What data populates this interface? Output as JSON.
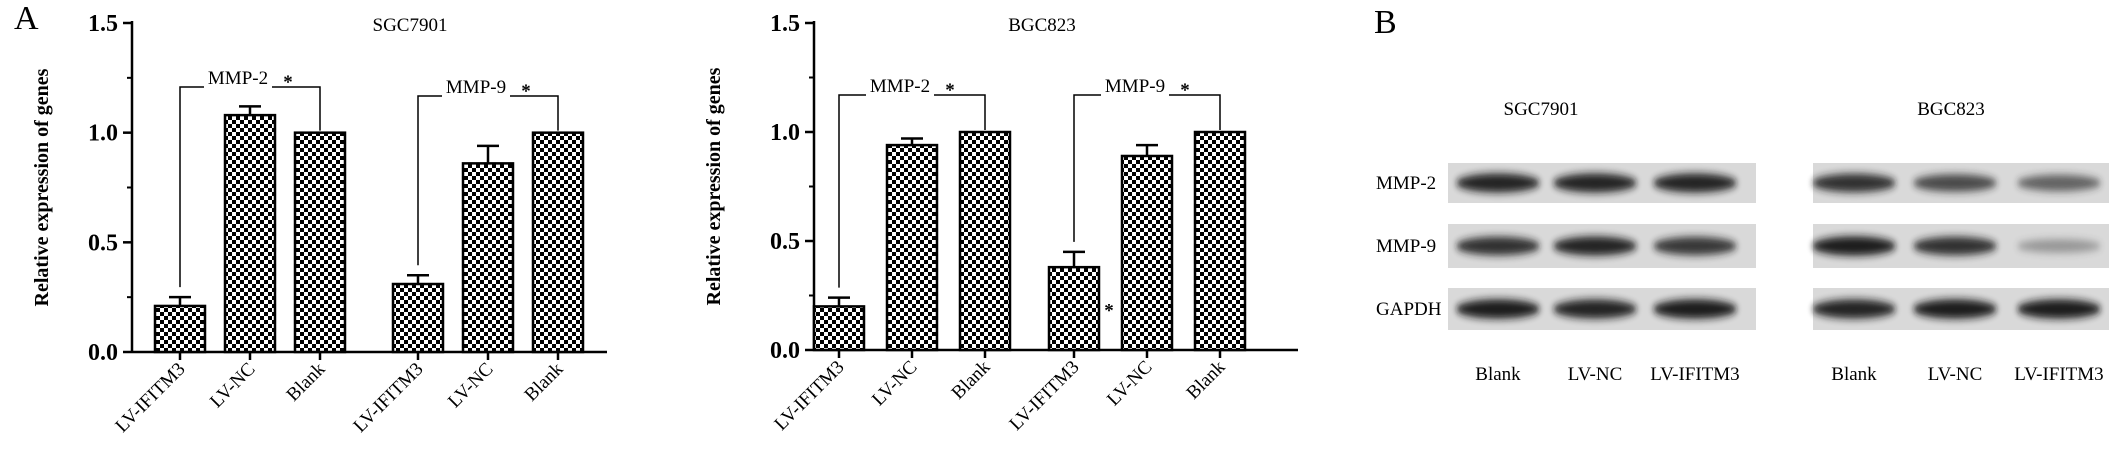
{
  "panel_labels": {
    "a": "A",
    "b": "B"
  },
  "chart_data": [
    {
      "type": "bar",
      "title": "SGC7901",
      "ylabel": "Relative expression of genes",
      "xlabel": "",
      "ylim": [
        0,
        1.5
      ],
      "yticks": [
        "0.0",
        "0.5",
        "1.0",
        "1.5"
      ],
      "groups": [
        {
          "name": "MMP-2",
          "categories": [
            "LV-IFITM3",
            "LV-NC",
            "Blank"
          ],
          "values": [
            0.21,
            1.08,
            1.0
          ],
          "errors": [
            0.04,
            0.04,
            0.0
          ],
          "bracket_label": "MMP-2",
          "bracket_star": "*"
        },
        {
          "name": "MMP-9",
          "categories": [
            "LV-IFITM3",
            "LV-NC",
            "Blank"
          ],
          "values": [
            0.31,
            0.86,
            1.0
          ],
          "errors": [
            0.04,
            0.08,
            0.0
          ],
          "bracket_label": "MMP-9",
          "bracket_star": "*"
        }
      ],
      "bar_stars": []
    },
    {
      "type": "bar",
      "title": "BGC823",
      "ylabel": "Relative expression of genes",
      "xlabel": "",
      "ylim": [
        0,
        1.5
      ],
      "yticks": [
        "0.0",
        "0.5",
        "1.0",
        "1.5"
      ],
      "groups": [
        {
          "name": "MMP-2",
          "categories": [
            "LV-IFITM3",
            "LV-NC",
            "Blank"
          ],
          "values": [
            0.2,
            0.94,
            1.0
          ],
          "errors": [
            0.04,
            0.03,
            0.0
          ],
          "bracket_label": "MMP-2",
          "bracket_star": "*"
        },
        {
          "name": "MMP-9",
          "categories": [
            "LV-IFITM3",
            "LV-NC",
            "Blank"
          ],
          "values": [
            0.38,
            0.89,
            1.0
          ],
          "errors": [
            0.07,
            0.05,
            0.0
          ],
          "bracket_label": "MMP-9",
          "bracket_star": "*"
        }
      ],
      "bar_stars": [
        {
          "group": 1,
          "bar": 0,
          "text": "*"
        }
      ]
    }
  ],
  "western_blot": {
    "cell_lines": [
      "SGC7901",
      "BGC823"
    ],
    "proteins": [
      "MMP-2",
      "MMP-9",
      "GAPDH"
    ],
    "lanes": [
      [
        "Blank",
        "LV-NC",
        "LV-IFITM3"
      ],
      [
        "Blank",
        "LV-NC",
        "LV-IFITM3"
      ]
    ],
    "band_intensity": {
      "SGC7901": {
        "MMP-2": [
          0.9,
          0.9,
          0.9
        ],
        "MMP-9": [
          0.85,
          0.9,
          0.8
        ],
        "GAPDH": [
          0.95,
          0.9,
          0.95
        ]
      },
      "BGC823": {
        "MMP-2": [
          0.85,
          0.7,
          0.55
        ],
        "MMP-9": [
          0.95,
          0.85,
          0.2
        ],
        "GAPDH": [
          0.9,
          0.95,
          0.95
        ]
      }
    }
  }
}
